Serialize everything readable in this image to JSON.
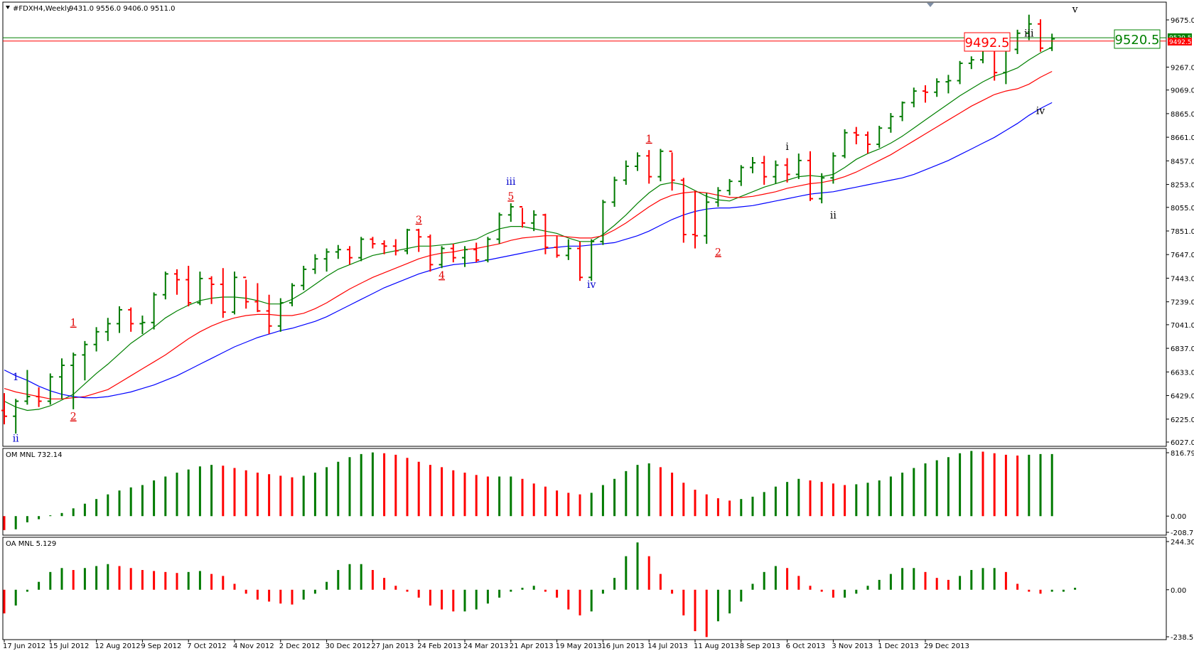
{
  "header": {
    "symbol": "#FDXH4,Weekly",
    "ohlc": "9431.0 9556.0 9406.0 9511.0"
  },
  "price_tags": {
    "green": "9520.5",
    "red": "9492.5",
    "axis_green": "9520.5",
    "axis_red": "9492.5"
  },
  "indicators": {
    "om_label": "OM MNL 732.14",
    "oa_label": "OA MNL 5.129"
  },
  "colors": {
    "up": "#007a00",
    "down": "#ff0000",
    "ma_fast": "#008000",
    "ma_mid": "#ff0000",
    "ma_slow": "#0000ff",
    "wave_red": "#e00000",
    "wave_blue": "#0000cc",
    "wave_black": "#000000",
    "grid_border": "#000000"
  },
  "chart_data": {
    "type": "bar",
    "title": "",
    "x_ticks": [
      "17 Jun 2012",
      "15 Jul 2012",
      "12 Aug 2012",
      "9 Sep 2012",
      "7 Oct 2012",
      "4 Nov 2012",
      "2 Dec 2012",
      "30 Dec 2012",
      "27 Jan 2013",
      "24 Feb 2013",
      "24 Mar 2013",
      "21 Apr 2013",
      "19 May 2013",
      "16 Jun 2013",
      "14 Jul 2013",
      "11 Aug 2013",
      "8 Sep 2013",
      "6 Oct 2013",
      "3 Nov 2013",
      "1 Dec 2013",
      "29 Dec 2013"
    ],
    "price_ticks": [
      "9675.0",
      "9267.0",
      "9069.0",
      "8865.0",
      "8661.0",
      "8457.0",
      "8253.0",
      "8055.0",
      "7851.0",
      "7647.0",
      "7443.0",
      "7239.0",
      "7041.0",
      "6837.0",
      "6633.0",
      "6429.0",
      "6225.0",
      "6027.0"
    ],
    "ylim": [
      6027,
      9720
    ],
    "ohlc": [
      [
        6300,
        6450,
        6180,
        6250
      ],
      [
        6250,
        6400,
        6100,
        6380
      ],
      [
        6380,
        6650,
        6350,
        6420
      ],
      [
        6420,
        6500,
        6330,
        6380
      ],
      [
        6380,
        6620,
        6350,
        6590
      ],
      [
        6590,
        6750,
        6400,
        6690
      ],
      [
        6690,
        6800,
        6310,
        6780
      ],
      [
        6780,
        6900,
        6560,
        6870
      ],
      [
        6870,
        7020,
        6810,
        6980
      ],
      [
        6980,
        7100,
        6900,
        7050
      ],
      [
        7050,
        7200,
        6970,
        7170
      ],
      [
        7170,
        7190,
        6980,
        7050
      ],
      [
        7050,
        7120,
        6960,
        7060
      ],
      [
        7060,
        7320,
        7000,
        7300
      ],
      [
        7300,
        7500,
        7260,
        7480
      ],
      [
        7480,
        7520,
        7300,
        7430
      ],
      [
        7430,
        7550,
        7200,
        7230
      ],
      [
        7230,
        7500,
        7210,
        7440
      ],
      [
        7440,
        7460,
        7220,
        7390
      ],
      [
        7390,
        7530,
        7100,
        7150
      ],
      [
        7150,
        7500,
        7130,
        7450
      ],
      [
        7450,
        7430,
        7180,
        7240
      ],
      [
        7240,
        7400,
        7150,
        7160
      ],
      [
        7160,
        7300,
        6960,
        7030
      ],
      [
        7030,
        7270,
        6980,
        7230
      ],
      [
        7230,
        7400,
        7200,
        7380
      ],
      [
        7380,
        7550,
        7340,
        7520
      ],
      [
        7520,
        7650,
        7480,
        7610
      ],
      [
        7610,
        7700,
        7500,
        7670
      ],
      [
        7670,
        7730,
        7610,
        7690
      ],
      [
        7690,
        7720,
        7560,
        7620
      ],
      [
        7620,
        7800,
        7590,
        7780
      ],
      [
        7780,
        7800,
        7700,
        7740
      ],
      [
        7740,
        7770,
        7650,
        7720
      ],
      [
        7720,
        7780,
        7640,
        7680
      ],
      [
        7680,
        7870,
        7650,
        7860
      ],
      [
        7860,
        7870,
        7670,
        7800
      ],
      [
        7800,
        7820,
        7500,
        7560
      ],
      [
        7560,
        7720,
        7530,
        7700
      ],
      [
        7700,
        7740,
        7580,
        7620
      ],
      [
        7620,
        7720,
        7540,
        7690
      ],
      [
        7690,
        7750,
        7580,
        7600
      ],
      [
        7600,
        7800,
        7580,
        7780
      ],
      [
        7780,
        8010,
        7740,
        7990
      ],
      [
        7990,
        8090,
        7930,
        8060
      ],
      [
        8060,
        8050,
        7880,
        7920
      ],
      [
        7920,
        8030,
        7850,
        7990
      ],
      [
        7990,
        8000,
        7650,
        7710
      ],
      [
        7710,
        7810,
        7620,
        7640
      ],
      [
        7640,
        7780,
        7600,
        7700
      ],
      [
        7700,
        7760,
        7420,
        7450
      ],
      [
        7450,
        7780,
        7420,
        7760
      ],
      [
        7760,
        8120,
        7730,
        8100
      ],
      [
        8100,
        8320,
        8060,
        8290
      ],
      [
        8290,
        8460,
        8250,
        8410
      ],
      [
        8410,
        8530,
        8370,
        8500
      ],
      [
        8500,
        8550,
        8260,
        8320
      ],
      [
        8320,
        8560,
        8280,
        8540
      ],
      [
        8540,
        8530,
        8200,
        8290
      ],
      [
        8290,
        8310,
        7750,
        7820
      ],
      [
        7820,
        8200,
        7700,
        7810
      ],
      [
        7810,
        8180,
        7740,
        8100
      ],
      [
        8100,
        8230,
        8060,
        8200
      ],
      [
        8200,
        8300,
        8160,
        8280
      ],
      [
        8280,
        8420,
        8240,
        8400
      ],
      [
        8400,
        8490,
        8350,
        8440
      ],
      [
        8440,
        8500,
        8250,
        8320
      ],
      [
        8320,
        8460,
        8260,
        8420
      ],
      [
        8420,
        8480,
        8270,
        8340
      ],
      [
        8340,
        8520,
        8300,
        8460
      ],
      [
        8460,
        8540,
        8110,
        8130
      ],
      [
        8130,
        8350,
        8090,
        8310
      ],
      [
        8310,
        8530,
        8260,
        8500
      ],
      [
        8500,
        8730,
        8480,
        8700
      ],
      [
        8700,
        8750,
        8600,
        8680
      ],
      [
        8680,
        8710,
        8520,
        8600
      ],
      [
        8600,
        8760,
        8570,
        8740
      ],
      [
        8740,
        8870,
        8700,
        8840
      ],
      [
        8840,
        8970,
        8800,
        8960
      ],
      [
        8960,
        9090,
        8920,
        9060
      ],
      [
        9060,
        9110,
        8960,
        9050
      ],
      [
        9050,
        9170,
        9010,
        9140
      ],
      [
        9140,
        9200,
        9040,
        9150
      ],
      [
        9150,
        9320,
        9120,
        9300
      ],
      [
        9300,
        9360,
        9250,
        9330
      ],
      [
        9330,
        9480,
        9300,
        9470
      ],
      [
        9470,
        9460,
        9150,
        9220
      ],
      [
        9220,
        9470,
        9120,
        9420
      ],
      [
        9420,
        9590,
        9380,
        9560
      ],
      [
        9560,
        9720,
        9500,
        9640
      ],
      [
        9640,
        9680,
        9400,
        9431
      ],
      [
        9431,
        9556,
        9406,
        9511
      ]
    ],
    "ma_fast": [
      6380,
      6330,
      6300,
      6310,
      6340,
      6390,
      6440,
      6530,
      6620,
      6700,
      6790,
      6880,
      6950,
      7020,
      7100,
      7160,
      7210,
      7250,
      7270,
      7280,
      7280,
      7270,
      7250,
      7220,
      7220,
      7260,
      7320,
      7390,
      7460,
      7520,
      7560,
      7600,
      7640,
      7660,
      7680,
      7700,
      7720,
      7720,
      7730,
      7740,
      7760,
      7780,
      7830,
      7870,
      7890,
      7890,
      7870,
      7850,
      7830,
      7790,
      7760,
      7760,
      7820,
      7900,
      7990,
      8090,
      8180,
      8250,
      8270,
      8250,
      8200,
      8150,
      8120,
      8110,
      8150,
      8190,
      8230,
      8260,
      8290,
      8320,
      8330,
      8320,
      8340,
      8400,
      8470,
      8520,
      8560,
      8610,
      8670,
      8740,
      8810,
      8880,
      8950,
      9020,
      9080,
      9140,
      9190,
      9220,
      9260,
      9330,
      9390,
      9440
    ],
    "ma_mid": [
      6490,
      6460,
      6440,
      6420,
      6400,
      6400,
      6410,
      6420,
      6450,
      6480,
      6540,
      6600,
      6660,
      6720,
      6780,
      6850,
      6920,
      6980,
      7030,
      7070,
      7100,
      7120,
      7130,
      7130,
      7120,
      7120,
      7140,
      7180,
      7230,
      7290,
      7350,
      7400,
      7450,
      7490,
      7530,
      7570,
      7610,
      7640,
      7660,
      7670,
      7690,
      7700,
      7720,
      7740,
      7770,
      7790,
      7800,
      7810,
      7810,
      7800,
      7790,
      7790,
      7810,
      7860,
      7920,
      7990,
      8060,
      8120,
      8160,
      8180,
      8190,
      8180,
      8160,
      8140,
      8140,
      8150,
      8170,
      8190,
      8220,
      8240,
      8260,
      8270,
      8290,
      8320,
      8360,
      8410,
      8460,
      8510,
      8570,
      8630,
      8690,
      8750,
      8810,
      8870,
      8930,
      8980,
      9030,
      9060,
      9080,
      9120,
      9180,
      9230
    ],
    "ma_slow": [
      6650,
      6600,
      6560,
      6510,
      6470,
      6440,
      6420,
      6410,
      6410,
      6420,
      6440,
      6460,
      6490,
      6520,
      6560,
      6600,
      6650,
      6700,
      6750,
      6800,
      6850,
      6890,
      6930,
      6960,
      6990,
      7010,
      7040,
      7070,
      7110,
      7160,
      7210,
      7260,
      7310,
      7360,
      7400,
      7440,
      7480,
      7510,
      7540,
      7560,
      7570,
      7580,
      7600,
      7620,
      7640,
      7660,
      7680,
      7700,
      7710,
      7720,
      7720,
      7730,
      7740,
      7750,
      7780,
      7810,
      7850,
      7900,
      7950,
      7990,
      8020,
      8040,
      8050,
      8050,
      8060,
      8070,
      8090,
      8110,
      8130,
      8150,
      8170,
      8180,
      8190,
      8210,
      8230,
      8250,
      8270,
      8290,
      8310,
      8340,
      8380,
      8420,
      8460,
      8510,
      8560,
      8610,
      8660,
      8720,
      8780,
      8850,
      8910,
      8960
    ],
    "om_axis": [
      "816.79",
      "0.00",
      "-208.76"
    ],
    "om_ylim": [
      -208.76,
      816.79
    ],
    "om_values": [
      -180,
      -170,
      -80,
      -40,
      10,
      40,
      100,
      160,
      220,
      280,
      330,
      370,
      400,
      460,
      510,
      560,
      600,
      640,
      660,
      650,
      620,
      590,
      560,
      540,
      520,
      500,
      520,
      560,
      630,
      700,
      760,
      800,
      820,
      810,
      790,
      750,
      700,
      660,
      630,
      590,
      560,
      530,
      510,
      510,
      510,
      480,
      420,
      380,
      330,
      300,
      280,
      300,
      400,
      480,
      580,
      660,
      680,
      630,
      560,
      430,
      340,
      280,
      230,
      200,
      220,
      250,
      310,
      380,
      440,
      480,
      460,
      440,
      420,
      400,
      410,
      430,
      460,
      510,
      560,
      620,
      680,
      720,
      760,
      810,
      840,
      830,
      810,
      790,
      780,
      790,
      800,
      800
    ],
    "oa_axis": [
      "244.301",
      "0.00",
      "-238.558"
    ],
    "oa_ylim": [
      -238.558,
      244.301
    ],
    "oa_values": [
      -120,
      -80,
      -10,
      40,
      90,
      110,
      100,
      110,
      120,
      130,
      120,
      110,
      100,
      95,
      90,
      85,
      90,
      95,
      80,
      70,
      30,
      -20,
      -50,
      -60,
      -70,
      -75,
      -50,
      -20,
      40,
      100,
      130,
      130,
      100,
      60,
      20,
      -10,
      -40,
      -80,
      -100,
      -110,
      -110,
      -100,
      -70,
      -40,
      -10,
      10,
      20,
      -10,
      -40,
      -100,
      -130,
      -110,
      -20,
      60,
      170,
      240,
      170,
      80,
      -20,
      -130,
      -210,
      -240,
      -160,
      -120,
      -60,
      30,
      90,
      120,
      110,
      70,
      20,
      -10,
      -40,
      -40,
      -20,
      20,
      50,
      80,
      110,
      110,
      90,
      60,
      50,
      70,
      100,
      110,
      110,
      90,
      30,
      -10,
      -20,
      -10,
      -10,
      10
    ]
  },
  "wave_labels": [
    {
      "text": "1",
      "color": "wave_blue",
      "bar": 1,
      "price": 6560
    },
    {
      "text": "ii",
      "color": "wave_blue",
      "bar": 1,
      "price": 6030
    },
    {
      "text": "1",
      "color": "wave_red",
      "bar": 6,
      "price": 7030
    },
    {
      "text": "2",
      "color": "wave_red",
      "bar": 6,
      "price": 6220
    },
    {
      "text": "3",
      "color": "wave_red",
      "bar": 36,
      "price": 7920
    },
    {
      "text": "4",
      "color": "wave_red",
      "bar": 38,
      "price": 7440
    },
    {
      "text": "5",
      "color": "wave_red",
      "bar": 44,
      "price": 8120
    },
    {
      "text": "iii",
      "color": "wave_blue",
      "bar": 44,
      "price": 8250
    },
    {
      "text": "iv",
      "color": "wave_blue",
      "bar": 51,
      "price": 7360
    },
    {
      "text": "1",
      "color": "wave_red",
      "bar": 56,
      "price": 8620
    },
    {
      "text": "2",
      "color": "wave_red",
      "bar": 62,
      "price": 7640
    },
    {
      "text": "i",
      "color": "wave_black",
      "bar": 68,
      "price": 8550
    },
    {
      "text": "ii",
      "color": "wave_black",
      "bar": 72,
      "price": 7960
    },
    {
      "text": "iii",
      "color": "wave_black",
      "bar": 89,
      "price": 9530
    },
    {
      "text": "iv",
      "color": "wave_black",
      "bar": 90,
      "price": 8860
    },
    {
      "text": "v",
      "color": "wave_black",
      "bar": 93,
      "price": 9740
    }
  ]
}
